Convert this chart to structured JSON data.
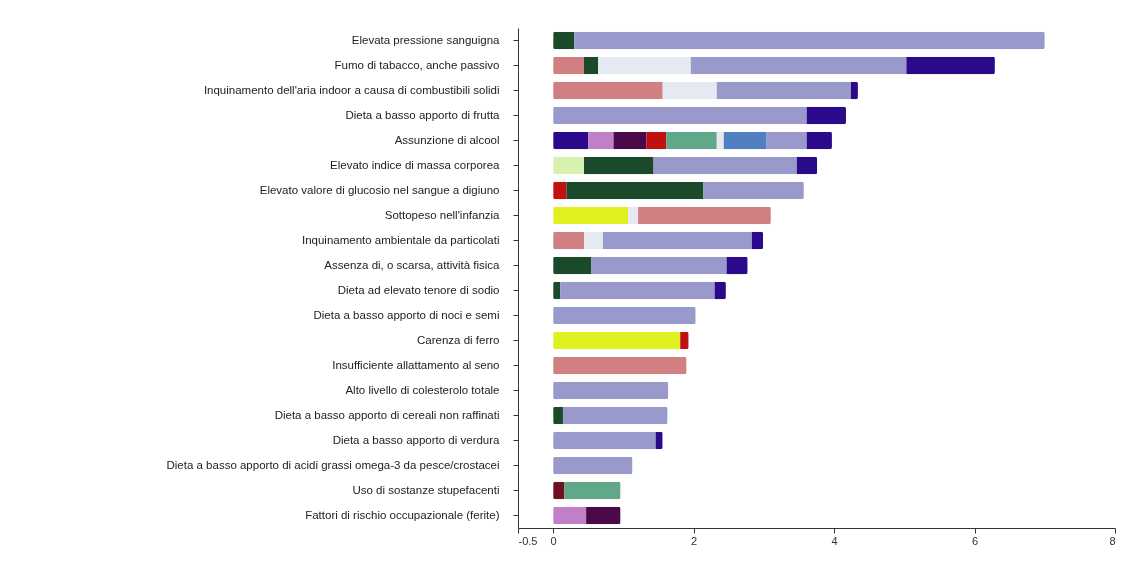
{
  "chart_data": {
    "type": "bar",
    "orientation": "horizontal",
    "stacked": true,
    "categories": [
      "Elevata pressione sanguigna",
      "Fumo di tabacco, anche passivo",
      "Inquinamento dell'aria indoor a causa di combustibili solidi",
      "Dieta a basso apporto di frutta",
      "Assunzione di alcool",
      "Elevato indice di massa corporea",
      "Elevato valore di glucosio nel sangue a digiuno",
      "Sottopeso nell'infanzia",
      "Inquinamento ambientale da particolati",
      "Assenza di, o scarsa, attività fisica",
      "Dieta ad elevato tenore di sodio",
      "Dieta a basso apporto di noci e semi",
      "Carenza di ferro",
      "Insufficiente allattamento al seno",
      "Alto livello di colesterolo totale",
      "Dieta a basso apporto di cereali non raffinati",
      "Dieta a basso apporto di verdura",
      "Dieta a basso apporto di acidi grassi omega-3 da pesce/crostacei",
      "Uso di sostanze stupefacenti",
      "Fattori di rischio occupazionale (ferite)"
    ],
    "xlim": [
      -0.5,
      8
    ],
    "xticks": [
      -0.5,
      0,
      2,
      4,
      6,
      8
    ],
    "series": [
      {
        "values": [
          0.3,
          0.44,
          1.56,
          3.61,
          0.5,
          0.44,
          0.19,
          1.07,
          0.44,
          0.54,
          0.1,
          2.03,
          1.81,
          1.9,
          1.64,
          0.14,
          1.46,
          1.13,
          0.16,
          0.47
        ],
        "colors": [
          "#1a4a2a",
          "#d08080",
          "#d08080",
          "#9999cc",
          "#2a0a8a",
          "#d8f0b0",
          "#c01010",
          "#e0f020",
          "#d08080",
          "#1a4a2a",
          "#1a4a2a",
          "#9999cc",
          "#e0f020",
          "#d08080",
          "#9999cc",
          "#1a4a2a",
          "#9999cc",
          "#9999cc",
          "#701020",
          "#c080c8"
        ]
      },
      {
        "values": [
          6.7,
          0.2,
          0.77,
          0.56,
          0.36,
          0.99,
          1.95,
          0.14,
          0.27,
          1.93,
          2.2,
          null,
          0.12,
          null,
          null,
          1.49,
          0.1,
          null,
          0.8,
          0.49
        ],
        "colors": [
          "#9999cc",
          "#1a4a2a",
          "#e6e8f2",
          "#2a0a8a",
          "#c080c8",
          "#1a4a2a",
          "#1a4a2a",
          "#e6e8f2",
          "#e6e8f2",
          "#9999cc",
          "#9999cc",
          null,
          "#c01010",
          null,
          null,
          "#9999cc",
          "#2a0a8a",
          null,
          "#60a888",
          "#4a0a4a"
        ]
      },
      {
        "values": [
          null,
          1.32,
          1.91,
          null,
          0.47,
          2.04,
          1.43,
          1.89,
          2.12,
          0.3,
          0.16,
          null,
          null,
          null,
          null,
          null,
          null,
          null,
          null,
          null
        ],
        "colors": [
          null,
          "#e6e8f2",
          "#9999cc",
          null,
          "#4a0a4a",
          "#9999cc",
          "#9999cc",
          "#d08080",
          "#9999cc",
          "#2a0a8a",
          "#2a0a8a",
          null,
          null,
          null,
          null,
          null,
          null,
          null,
          null,
          null
        ]
      },
      {
        "values": [
          null,
          3.07,
          0.1,
          null,
          0.28,
          0.29,
          null,
          null,
          0.16,
          null,
          null,
          null,
          null,
          null,
          null,
          null,
          null,
          null,
          null,
          null
        ],
        "colors": [
          null,
          "#9999cc",
          "#2a0a8a",
          null,
          "#c01010",
          "#2a0a8a",
          null,
          null,
          "#2a0a8a",
          null,
          null,
          null,
          null,
          null,
          null,
          null,
          null,
          null,
          null,
          null
        ]
      },
      {
        "values": [
          null,
          1.26,
          null,
          null,
          0.72,
          null,
          null,
          null,
          null,
          null,
          null,
          null,
          null,
          null,
          null,
          null,
          null,
          null,
          null,
          null
        ],
        "colors": [
          null,
          "#2a0a8a",
          null,
          null,
          "#60a888",
          null,
          null,
          null,
          null,
          null,
          null,
          null,
          null,
          null,
          null,
          null,
          null,
          null,
          null,
          null
        ]
      },
      {
        "values": [
          null,
          null,
          null,
          null,
          0.1,
          null,
          null,
          null,
          null,
          null,
          null,
          null,
          null,
          null,
          null,
          null,
          null,
          null,
          null,
          null
        ],
        "colors": [
          null,
          null,
          null,
          null,
          "#e6e8f2",
          null,
          null,
          null,
          null,
          null,
          null,
          null,
          null,
          null,
          null,
          null,
          null,
          null,
          null,
          null
        ]
      },
      {
        "values": [
          null,
          null,
          null,
          null,
          0.61,
          null,
          null,
          null,
          null,
          null,
          null,
          null,
          null,
          null,
          null,
          null,
          null,
          null,
          null,
          null
        ],
        "colors": [
          null,
          null,
          null,
          null,
          "#5080c0",
          null,
          null,
          null,
          null,
          null,
          null,
          null,
          null,
          null,
          null,
          null,
          null,
          null,
          null,
          null
        ]
      },
      {
        "values": [
          null,
          null,
          null,
          null,
          0.57,
          null,
          null,
          null,
          null,
          null,
          null,
          null,
          null,
          null,
          null,
          null,
          null,
          null,
          null,
          null
        ],
        "colors": [
          null,
          null,
          null,
          null,
          "#9999cc",
          null,
          null,
          null,
          null,
          null,
          null,
          null,
          null,
          null,
          null,
          null,
          null,
          null,
          null,
          null
        ]
      },
      {
        "values": [
          null,
          null,
          null,
          null,
          0.36,
          null,
          null,
          null,
          null,
          null,
          null,
          null,
          null,
          null,
          null,
          null,
          null,
          null,
          null,
          null
        ],
        "colors": [
          null,
          null,
          null,
          null,
          "#2a0a8a",
          null,
          null,
          null,
          null,
          null,
          null,
          null,
          null,
          null,
          null,
          null,
          null,
          null,
          null,
          null
        ]
      }
    ]
  }
}
